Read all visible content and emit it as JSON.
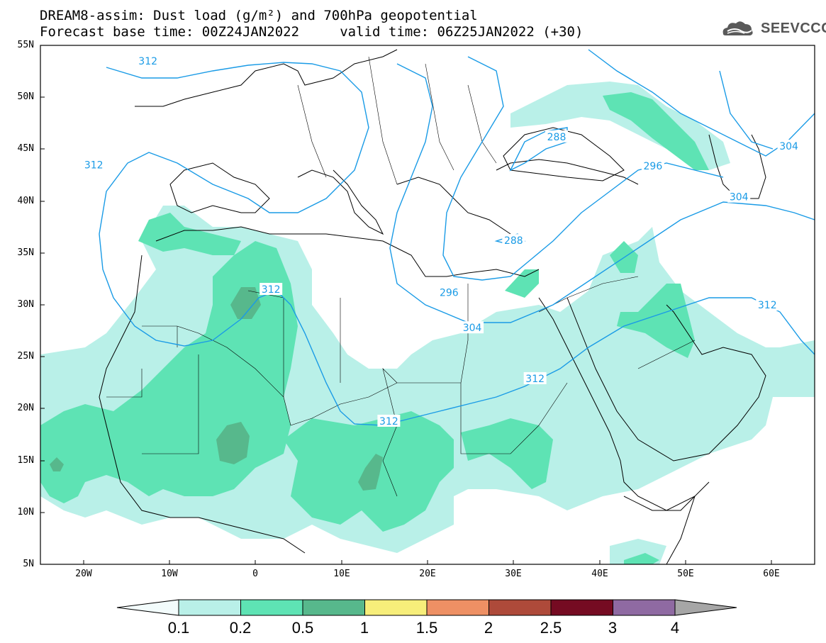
{
  "title_line1": "DREAM8-assim: Dust load (g/m²) and 700hPa geopotential",
  "title_line2": "Forecast base time: 00Z24JAN2022     valid time: 06Z25JAN2022 (+30)",
  "logo_text": "SEEVCCC",
  "map": {
    "lon_range": [
      -25,
      65
    ],
    "lat_range": [
      5,
      55
    ],
    "lat_labels": [
      "55N",
      "50N",
      "45N",
      "40N",
      "35N",
      "30N",
      "25N",
      "20N",
      "15N",
      "10N",
      "5N"
    ],
    "lon_labels": [
      "20W",
      "10W",
      "0",
      "10E",
      "20E",
      "30E",
      "40E",
      "50E",
      "60E"
    ],
    "contour_labels": [
      {
        "text": "312",
        "lon": -12.5,
        "lat": 53.5
      },
      {
        "text": "312",
        "lon": -18.8,
        "lat": 43.5
      },
      {
        "text": "312",
        "lon": 1.8,
        "lat": 31.5
      },
      {
        "text": "312",
        "lon": 15.5,
        "lat": 18.8
      },
      {
        "text": "312",
        "lon": 32.5,
        "lat": 22.9
      },
      {
        "text": "312",
        "lon": 59.5,
        "lat": 30.0
      },
      {
        "text": "304",
        "lon": 25.2,
        "lat": 27.8
      },
      {
        "text": "304",
        "lon": 56.2,
        "lat": 40.4
      },
      {
        "text": "296",
        "lon": 22.5,
        "lat": 31.2
      },
      {
        "text": "296",
        "lon": 46.2,
        "lat": 43.4
      },
      {
        "text": "288",
        "lon": 35.0,
        "lat": 46.2
      },
      {
        "text": "288",
        "lon": 30.0,
        "lat": 36.2
      },
      {
        "text": "304",
        "lon": 62.0,
        "lat": 45.3
      }
    ]
  },
  "colorbar": {
    "unit": "g/m²",
    "levels": [
      "0.1",
      "0.2",
      "0.5",
      "1",
      "1.5",
      "2",
      "2.5",
      "3",
      "4"
    ],
    "colors": [
      "#f3fcfc",
      "#b9f0e8",
      "#5ee3b4",
      "#57b88c",
      "#f7ee7a",
      "#ee9064",
      "#ae4a3a",
      "#750b22",
      "#8f6aa2",
      "#a6a6a6"
    ]
  },
  "contour_color": "#1a9be6"
}
